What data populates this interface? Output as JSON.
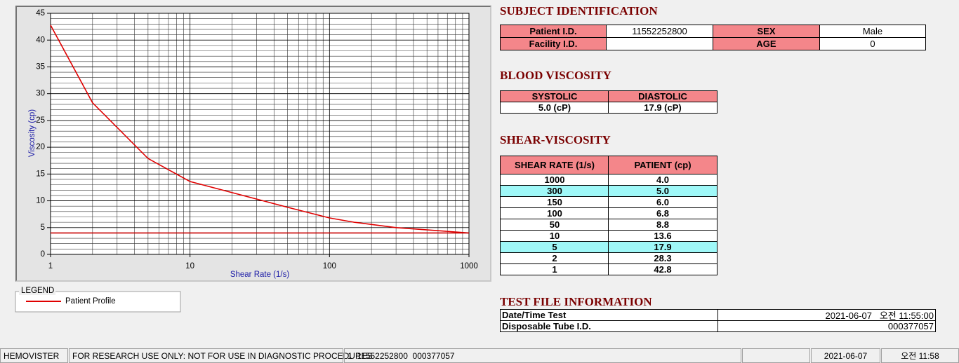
{
  "chart_data": {
    "type": "line",
    "x_label": "Shear Rate (1/s)",
    "y_label": "Viscosity (cp)",
    "x_scale": "log",
    "xlim": [
      1,
      1000
    ],
    "xticks": [
      1,
      10,
      100,
      1000
    ],
    "ylim": [
      0,
      45
    ],
    "yticks": [
      0,
      5,
      10,
      15,
      20,
      25,
      30,
      35,
      40,
      45
    ],
    "grid": true,
    "minor_grid": true,
    "legend": {
      "title": "LEGEND",
      "position": "below"
    },
    "series": [
      {
        "name": "Patient Profile",
        "color": "#e00000",
        "x": [
          1,
          2,
          5,
          10,
          50,
          100,
          150,
          300,
          1000
        ],
        "values": [
          42.8,
          28.3,
          17.9,
          13.6,
          8.8,
          6.8,
          6.0,
          5.0,
          4.0
        ]
      },
      {
        "color": "#c80000",
        "x": [
          1,
          1000
        ],
        "values": [
          4,
          4
        ]
      }
    ]
  },
  "subject_identification": {
    "title": "SUBJECT IDENTIFICATION",
    "patient_id_label": "Patient I.D.",
    "patient_id": "11552252800",
    "sex_label": "SEX",
    "sex": "Male",
    "facility_id_label": "Facility I.D.",
    "age_label": "AGE",
    "age": "0"
  },
  "blood_viscosity": {
    "title": "BLOOD VISCOSITY",
    "headers": [
      "SYSTOLIC",
      "DIASTOLIC"
    ],
    "values": [
      "5.0 (cP)",
      "17.9 (cP)"
    ]
  },
  "shear_viscosity": {
    "title": "SHEAR-VISCOSITY",
    "headers": [
      "SHEAR RATE (1/s)",
      "PATIENT (cp)"
    ],
    "highlight_color": "#9ff8f8",
    "rows": [
      {
        "cells": [
          "1000",
          "4.0"
        ]
      },
      {
        "cells": [
          "300",
          "5.0"
        ],
        "highlighted": true
      },
      {
        "cells": [
          "150",
          "6.0"
        ]
      },
      {
        "cells": [
          "100",
          "6.8"
        ]
      },
      {
        "cells": [
          "50",
          "8.8"
        ]
      },
      {
        "cells": [
          "10",
          "13.6"
        ]
      },
      {
        "cells": [
          "5",
          "17.9"
        ],
        "highlighted": true
      },
      {
        "cells": [
          "2",
          "28.3"
        ]
      },
      {
        "cells": [
          "1",
          "42.8"
        ]
      }
    ]
  },
  "test_file": {
    "title": "TEST FILE INFORMATION",
    "rows": [
      [
        "Date/Time Test",
        "2021-06-07   오전 11:55:00"
      ],
      [
        "Disposable Tube I.D.",
        "000377057"
      ]
    ]
  },
  "status_bar": [
    "HEMOVISTER",
    "FOR RESEARCH USE ONLY: NOT FOR USE IN DIAGNOSTIC PROCEDURES",
    "1  11552252800  000377057",
    "2021-06-07",
    "오전 11:58"
  ]
}
